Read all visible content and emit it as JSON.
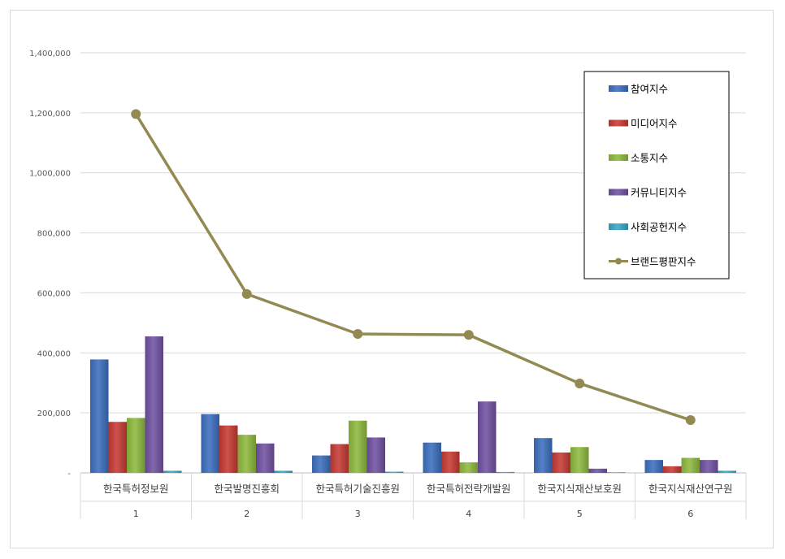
{
  "chart_data": {
    "type": "bar",
    "title": "",
    "xlabel": "",
    "ylabel": "",
    "categories": [
      "한국특허정보원",
      "한국발명진흥회",
      "한국특허기술진흥원",
      "한국특허전략개발원",
      "한국지식재산보호원",
      "한국지식재산연구원"
    ],
    "category_index": [
      "1",
      "2",
      "3",
      "4",
      "5",
      "6"
    ],
    "ylim": [
      0,
      1400000
    ],
    "yticks": [
      0,
      200000,
      400000,
      600000,
      800000,
      1000000,
      1200000,
      1400000
    ],
    "ytick_labels": [
      "-",
      "200,000",
      "400,000",
      "600,000",
      "800,000",
      "1,000,000",
      "1,200,000",
      "1,400,000"
    ],
    "grid": true,
    "legend_position": "top-right",
    "series": [
      {
        "name": "참여지수",
        "kind": "bar",
        "color": "#3c6fbf",
        "values": [
          378000,
          196000,
          58000,
          101000,
          116000,
          43000
        ]
      },
      {
        "name": "미디어지수",
        "kind": "bar",
        "color": "#c83a35",
        "values": [
          170000,
          158000,
          96000,
          71000,
          68000,
          22000
        ]
      },
      {
        "name": "소통지수",
        "kind": "bar",
        "color": "#8fba3f",
        "values": [
          183000,
          127000,
          174000,
          35000,
          86000,
          50000
        ]
      },
      {
        "name": "커뮤니티지수",
        "kind": "bar",
        "color": "#7252a3",
        "values": [
          455000,
          98000,
          118000,
          238000,
          14000,
          43000
        ]
      },
      {
        "name": "사회공헌지수",
        "kind": "bar",
        "color": "#34a7c7",
        "values": [
          7000,
          7000,
          4000,
          3000,
          2000,
          7000
        ]
      },
      {
        "name": "브랜드평판지수",
        "kind": "line",
        "color": "#938953",
        "values": [
          1196000,
          596000,
          463000,
          460000,
          298000,
          176000
        ]
      }
    ]
  }
}
